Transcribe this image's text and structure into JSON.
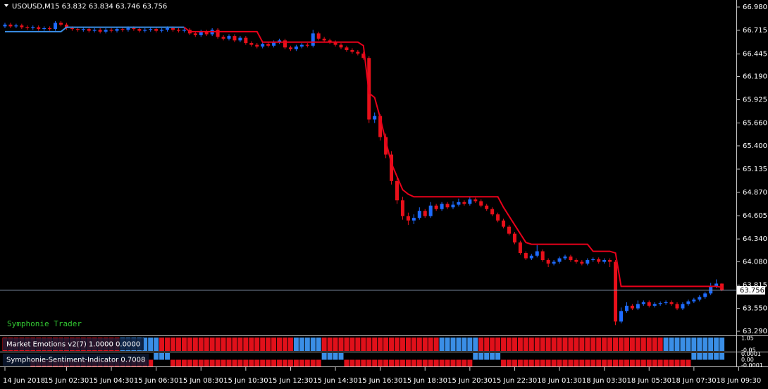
{
  "chart_data": {
    "type": "candlestick",
    "title": "USOUSD,M15",
    "annotation": "Symphonie Trader",
    "up_color": "#1e6bff",
    "down_color": "#e8101a",
    "open": [
      66.76,
      66.78,
      66.76,
      66.77,
      66.75,
      66.74,
      66.75,
      66.73,
      66.74,
      66.73,
      66.8,
      66.78,
      66.74,
      66.73,
      66.72,
      66.73,
      66.71,
      66.72,
      66.7,
      66.72,
      66.71,
      66.73,
      66.72,
      66.74,
      66.73,
      66.71,
      66.72,
      66.73,
      66.71,
      66.72,
      66.74,
      66.72,
      66.71,
      66.72,
      66.68,
      66.66,
      66.7,
      66.67,
      66.72,
      66.64,
      66.62,
      66.65,
      66.6,
      66.63,
      66.57,
      66.55,
      66.53,
      66.56,
      66.54,
      66.58,
      66.6,
      66.52,
      66.5,
      66.53,
      66.55,
      66.54,
      66.68,
      66.62,
      66.6,
      66.58,
      66.55,
      66.52,
      66.49,
      66.47,
      66.45,
      66.4,
      65.7,
      65.74,
      65.5,
      65.3,
      65.0,
      64.78,
      64.6,
      64.55,
      64.58,
      64.66,
      64.6,
      64.72,
      64.68,
      64.74,
      64.7,
      64.73,
      64.76,
      64.74,
      64.79,
      64.77,
      64.72,
      64.68,
      64.62,
      64.55,
      64.48,
      64.4,
      64.3,
      64.18,
      64.12,
      64.15,
      64.2,
      64.1,
      64.06,
      64.08,
      64.12,
      64.14,
      64.1,
      64.08,
      64.06,
      64.1,
      64.11,
      64.08,
      64.1,
      64.08,
      63.4,
      63.52,
      63.58,
      63.55,
      63.6,
      63.62,
      63.58,
      63.6,
      63.61,
      63.62,
      63.6,
      63.55,
      63.6,
      63.63,
      63.65,
      63.68,
      63.72,
      63.8,
      63.832
    ],
    "high": [
      66.8,
      66.8,
      66.79,
      66.79,
      66.77,
      66.77,
      66.77,
      66.76,
      66.76,
      66.82,
      66.82,
      66.8,
      66.76,
      66.75,
      66.75,
      66.75,
      66.74,
      66.74,
      66.74,
      66.74,
      66.75,
      66.75,
      66.76,
      66.76,
      66.75,
      66.74,
      66.75,
      66.75,
      66.74,
      66.76,
      66.76,
      66.74,
      66.74,
      66.74,
      66.7,
      66.72,
      66.72,
      66.74,
      66.74,
      66.66,
      66.67,
      66.67,
      66.65,
      66.65,
      66.59,
      66.57,
      66.58,
      66.58,
      66.6,
      66.62,
      66.62,
      66.54,
      66.55,
      66.57,
      66.57,
      66.72,
      66.7,
      66.64,
      66.62,
      66.6,
      66.57,
      66.54,
      66.51,
      66.49,
      66.47,
      66.42,
      65.78,
      65.76,
      65.54,
      65.34,
      65.04,
      64.82,
      64.64,
      64.62,
      64.7,
      64.68,
      64.76,
      64.74,
      64.76,
      64.76,
      64.77,
      64.8,
      64.78,
      64.82,
      64.81,
      64.79,
      64.74,
      64.7,
      64.64,
      64.57,
      64.5,
      64.42,
      64.32,
      64.2,
      64.17,
      64.27,
      64.22,
      64.12,
      64.1,
      64.14,
      64.16,
      64.16,
      64.12,
      64.1,
      64.12,
      64.13,
      64.13,
      64.12,
      64.12,
      64.1,
      63.56,
      63.62,
      63.6,
      63.64,
      63.64,
      63.64,
      63.62,
      63.63,
      63.64,
      63.64,
      63.62,
      63.62,
      63.65,
      63.67,
      63.7,
      63.74,
      63.84,
      63.88,
      63.834
    ],
    "low": [
      66.74,
      66.74,
      66.74,
      66.73,
      66.72,
      66.72,
      66.71,
      66.71,
      66.71,
      66.71,
      66.76,
      66.72,
      66.71,
      66.7,
      66.7,
      66.69,
      66.69,
      66.68,
      66.68,
      66.69,
      66.69,
      66.7,
      66.7,
      66.71,
      66.69,
      66.69,
      66.7,
      66.69,
      66.69,
      66.7,
      66.7,
      66.69,
      66.69,
      66.66,
      66.64,
      66.64,
      66.65,
      66.65,
      66.62,
      66.6,
      66.6,
      66.58,
      66.58,
      66.55,
      66.53,
      66.51,
      66.51,
      66.52,
      66.52,
      66.56,
      66.5,
      66.48,
      66.48,
      66.51,
      66.52,
      66.52,
      66.6,
      66.58,
      66.56,
      66.53,
      66.5,
      66.47,
      66.45,
      66.43,
      66.38,
      65.66,
      65.66,
      65.46,
      65.26,
      64.96,
      64.74,
      64.56,
      64.5,
      64.51,
      64.56,
      64.58,
      64.58,
      64.66,
      64.66,
      64.68,
      64.68,
      64.71,
      64.72,
      64.72,
      64.75,
      64.7,
      64.66,
      64.6,
      64.53,
      64.46,
      64.38,
      64.28,
      64.16,
      64.1,
      64.1,
      64.13,
      64.08,
      64.02,
      64.04,
      64.06,
      64.1,
      64.08,
      64.06,
      64.04,
      64.04,
      64.08,
      64.06,
      64.06,
      64.02,
      63.36,
      63.38,
      63.5,
      63.53,
      63.53,
      63.58,
      63.56,
      63.56,
      63.58,
      63.59,
      63.58,
      63.53,
      63.53,
      63.58,
      63.61,
      63.63,
      63.66,
      63.7,
      63.78,
      63.746
    ],
    "close": [
      66.78,
      66.76,
      66.77,
      66.75,
      66.74,
      66.75,
      66.73,
      66.74,
      66.73,
      66.8,
      66.78,
      66.74,
      66.73,
      66.72,
      66.73,
      66.71,
      66.72,
      66.7,
      66.72,
      66.71,
      66.73,
      66.72,
      66.74,
      66.73,
      66.71,
      66.72,
      66.73,
      66.71,
      66.72,
      66.74,
      66.72,
      66.71,
      66.72,
      66.68,
      66.66,
      66.7,
      66.67,
      66.72,
      66.64,
      66.62,
      66.65,
      66.6,
      66.63,
      66.57,
      66.55,
      66.53,
      66.56,
      66.54,
      66.58,
      66.6,
      66.52,
      66.5,
      66.53,
      66.55,
      66.54,
      66.68,
      66.62,
      66.6,
      66.58,
      66.55,
      66.52,
      66.49,
      66.47,
      66.45,
      66.4,
      65.7,
      65.74,
      65.5,
      65.3,
      65.0,
      64.78,
      64.6,
      64.55,
      64.58,
      64.66,
      64.6,
      64.72,
      64.68,
      64.74,
      64.7,
      64.73,
      64.76,
      64.74,
      64.79,
      64.77,
      64.72,
      64.68,
      64.62,
      64.55,
      64.48,
      64.4,
      64.3,
      64.18,
      64.12,
      64.15,
      64.2,
      64.1,
      64.06,
      64.08,
      64.12,
      64.14,
      64.1,
      64.08,
      64.06,
      64.1,
      64.11,
      64.08,
      64.1,
      64.08,
      63.4,
      63.52,
      63.58,
      63.55,
      63.6,
      63.62,
      63.58,
      63.6,
      63.61,
      63.62,
      63.6,
      63.55,
      63.6,
      63.63,
      63.65,
      63.68,
      63.72,
      63.8,
      63.832,
      63.756
    ],
    "trend": {
      "values": [
        66.7,
        66.7,
        66.7,
        66.7,
        66.7,
        66.7,
        66.7,
        66.7,
        66.7,
        66.7,
        66.7,
        66.75,
        66.75,
        66.75,
        66.75,
        66.75,
        66.75,
        66.75,
        66.75,
        66.75,
        66.75,
        66.75,
        66.75,
        66.75,
        66.75,
        66.75,
        66.75,
        66.75,
        66.75,
        66.75,
        66.75,
        66.75,
        66.75,
        66.7,
        66.7,
        66.7,
        66.7,
        66.7,
        66.7,
        66.7,
        66.7,
        66.7,
        66.7,
        66.7,
        66.7,
        66.7,
        66.58,
        66.58,
        66.58,
        66.58,
        66.58,
        66.58,
        66.58,
        66.58,
        66.58,
        66.58,
        66.58,
        66.58,
        66.58,
        66.58,
        66.58,
        66.58,
        66.58,
        66.58,
        66.54,
        66.0,
        65.95,
        65.72,
        65.45,
        65.2,
        65.05,
        64.9,
        64.85,
        64.82,
        64.82,
        64.82,
        64.82,
        64.82,
        64.82,
        64.82,
        64.82,
        64.82,
        64.82,
        64.82,
        64.82,
        64.82,
        64.82,
        64.82,
        64.82,
        64.7,
        64.6,
        64.5,
        64.4,
        64.3,
        64.28,
        64.28,
        64.28,
        64.28,
        64.28,
        64.28,
        64.28,
        64.28,
        64.28,
        64.28,
        64.28,
        64.2,
        64.2,
        64.2,
        64.2,
        64.18,
        63.8,
        63.8,
        63.8,
        63.8,
        63.8,
        63.8,
        63.8,
        63.8,
        63.8,
        63.8,
        63.8,
        63.8,
        63.8,
        63.8,
        63.8,
        63.8,
        63.8,
        63.8,
        63.79
      ],
      "runs": [
        {
          "color": "#3a8ee6",
          "bars": 33
        },
        {
          "color": "#e8001a",
          "bars": 96
        }
      ]
    },
    "ylim": [
      63.242,
      67.06
    ],
    "yticks": [
      {
        "value": 66.98,
        "label": "66.980"
      },
      66.715,
      66.445,
      {
        "value": 66.19,
        "label": "66.190"
      },
      65.925,
      {
        "value": 65.66,
        "label": "65.660"
      },
      {
        "value": 65.4,
        "label": "65.400"
      },
      65.135,
      {
        "value": 64.87,
        "label": "64.870"
      },
      64.605,
      {
        "value": 64.34,
        "label": "64.340"
      },
      {
        "value": 64.08,
        "label": "64.080"
      },
      63.815,
      {
        "value": 63.55,
        "label": "63.550"
      },
      {
        "value": 63.29,
        "label": "63.290"
      }
    ],
    "xticks": [
      {
        "value": 0,
        "label": "14 Jun 2018"
      },
      {
        "value": 11,
        "label": "15 Jun 02:30"
      },
      {
        "value": 19,
        "label": "15 Jun 04:30"
      },
      {
        "value": 27,
        "label": "15 Jun 06:30"
      },
      {
        "value": 35,
        "label": "15 Jun 08:30"
      },
      {
        "value": 43,
        "label": "15 Jun 10:30"
      },
      {
        "value": 51,
        "label": "15 Jun 12:30"
      },
      {
        "value": 59,
        "label": "15 Jun 14:30"
      },
      {
        "value": 67,
        "label": "15 Jun 16:30"
      },
      {
        "value": 75,
        "label": "15 Jun 18:30"
      },
      {
        "value": 83,
        "label": "15 Jun 20:30"
      },
      {
        "value": 91,
        "label": "15 Jun 22:30"
      },
      {
        "value": 99,
        "label": "18 Jun 01:30"
      },
      {
        "value": 107,
        "label": "18 Jun 03:30"
      },
      {
        "value": 115,
        "label": "18 Jun 05:30"
      },
      {
        "value": 123,
        "label": "18 Jun 07:30"
      },
      {
        "value": 131,
        "label": "18 Jun 09:30"
      }
    ],
    "indicators": [
      {
        "label": "Market Emotions v2(7) 1.0000 0.0000",
        "mode": "full",
        "ylim": [
          -0.1,
          1.1
        ],
        "yticks": [
          1.05,
          -0.05
        ],
        "runs": [
          {
            "state": "down",
            "bars": 21
          },
          {
            "state": "up",
            "bars": 7
          },
          {
            "state": "down",
            "bars": 24
          },
          {
            "state": "up",
            "bars": 5
          },
          {
            "state": "down",
            "bars": 21
          },
          {
            "state": "up",
            "bars": 7
          },
          {
            "state": "down",
            "bars": 33
          },
          {
            "state": "up",
            "bars": 11
          }
        ]
      },
      {
        "label": "Symphonie-Sentiment-Indicator 0.7008",
        "mode": "split",
        "ylim": [
          -0.00012,
          0.00012
        ],
        "yticks": [
          0.0001,
          {
            "value": 0,
            "label": "0.00"
          },
          -0.0001
        ],
        "runs": [
          {
            "state": "none",
            "bars": 5
          },
          {
            "state": "down",
            "bars": 22
          },
          {
            "state": "up",
            "bars": 3
          },
          {
            "state": "down",
            "bars": 27
          },
          {
            "state": "up",
            "bars": 4
          },
          {
            "state": "down",
            "bars": 23
          },
          {
            "state": "up",
            "bars": 5
          },
          {
            "state": "down",
            "bars": 34
          },
          {
            "state": "up",
            "bars": 6
          }
        ]
      }
    ],
    "panel_up_color": "#3a8ee6",
    "panel_down_color": "#e0101a"
  }
}
